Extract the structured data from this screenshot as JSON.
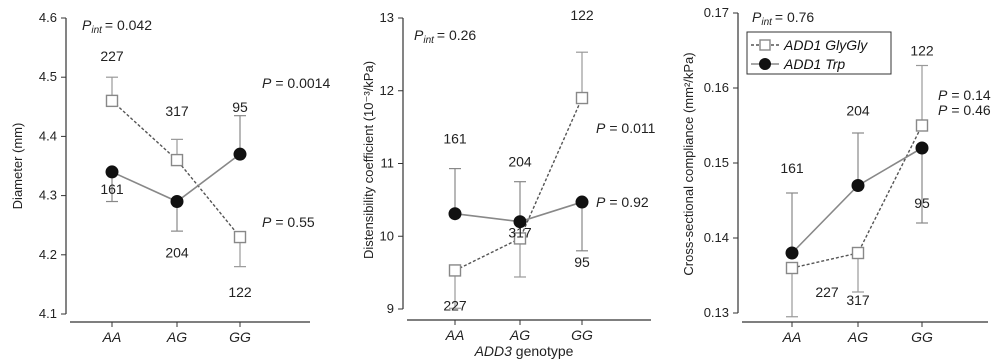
{
  "chart_data": [
    {
      "type": "line",
      "ylabel": "Diameter (mm)",
      "ylim": [
        4.1,
        4.6
      ],
      "yticks": [
        "4.1",
        "4.2",
        "4.3",
        "4.4",
        "4.5",
        "4.6"
      ],
      "categories": [
        "AA",
        "AG",
        "GG"
      ],
      "p_int": "= 0.042",
      "series": [
        {
          "name": "ADD1 GlyGly",
          "marker": "square",
          "values": [
            4.46,
            4.36,
            4.23
          ],
          "err_dir": "up",
          "err": [
            0.04,
            0.035,
            0.05
          ],
          "n": [
            "227",
            "317",
            "122"
          ]
        },
        {
          "name": "ADD1 Trp",
          "marker": "circle",
          "values": [
            4.34,
            4.29,
            4.37
          ],
          "err_dir": "mixed",
          "err": [
            0.05,
            0.05,
            0.065
          ],
          "n": [
            "161",
            "204",
            "95"
          ]
        }
      ],
      "p_labels": [
        {
          "text": "= 0.55",
          "series": 1
        },
        {
          "text": "= 0.0014",
          "series": 0
        }
      ]
    },
    {
      "type": "line",
      "ylabel": "Distensibility coefficient (10⁻³/kPa)",
      "xlabel_italic": "ADD3",
      "xlabel_rest": " genotype",
      "ylim": [
        9,
        13
      ],
      "yticks": [
        "9",
        "10",
        "11",
        "12",
        "13"
      ],
      "categories": [
        "AA",
        "AG",
        "GG"
      ],
      "p_int": "= 0.26",
      "series": [
        {
          "name": "ADD1 GlyGly",
          "marker": "square",
          "values": [
            9.53,
            9.97,
            11.9
          ],
          "err": [
            0.52,
            0.53,
            0.63
          ],
          "n": [
            "227",
            "317",
            "122"
          ]
        },
        {
          "name": "ADD1 Trp",
          "marker": "circle",
          "values": [
            10.31,
            10.2,
            10.47
          ],
          "err": [
            0.62,
            0.55,
            0.67
          ],
          "n": [
            "161",
            "204",
            "95"
          ]
        }
      ],
      "p_labels": [
        {
          "text": "= 0.011",
          "series": 0
        },
        {
          "text": "= 0.92",
          "series": 1
        }
      ]
    },
    {
      "type": "line",
      "ylabel": "Cross-sectional compliance (mm²/kPa)",
      "ylim": [
        0.13,
        0.17
      ],
      "yticks": [
        "0.13",
        "0.14",
        "0.15",
        "0.16",
        "0.17"
      ],
      "categories": [
        "AA",
        "AG",
        "GG"
      ],
      "p_int": "= 0.76",
      "legend": [
        "ADD1 GlyGly",
        "ADD1 Trp"
      ],
      "series": [
        {
          "name": "ADD1 GlyGly",
          "marker": "square",
          "values": [
            0.136,
            0.138,
            0.155
          ],
          "err": [
            0.0065,
            0.0052,
            0.008
          ],
          "n": [
            "227",
            "317",
            "122"
          ]
        },
        {
          "name": "ADD1 Trp",
          "marker": "circle",
          "values": [
            0.138,
            0.147,
            0.152
          ],
          "err": [
            0.008,
            0.007,
            0.01
          ],
          "n": [
            "161",
            "204",
            "95"
          ]
        }
      ],
      "p_labels": [
        {
          "text": "= 0.14",
          "series": 0
        },
        {
          "text": "= 0.46",
          "series": 1
        }
      ]
    }
  ],
  "p_letter": "P",
  "p_int_sub": "int"
}
